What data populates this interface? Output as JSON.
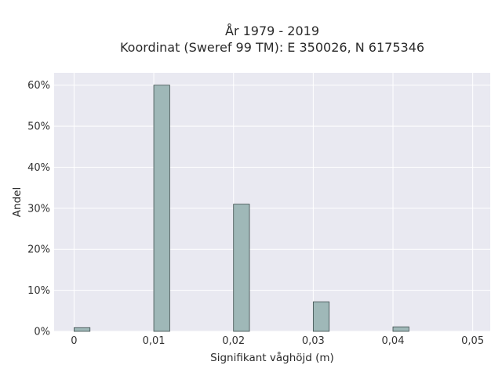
{
  "chart_data": {
    "type": "bar",
    "title_line1": "År 1979 - 2019",
    "title_line2": "Koordinat (Sweref 99 TM): E 350026, N 6175346",
    "xlabel": "Signifikant våghöjd (m)",
    "ylabel": "Andel",
    "x_ticks": [
      "0",
      "0,01",
      "0,02",
      "0,03",
      "0,04",
      "0,05"
    ],
    "x_tick_values": [
      0,
      0.01,
      0.02,
      0.03,
      0.04,
      0.05
    ],
    "y_ticks": [
      "0%",
      "10%",
      "20%",
      "30%",
      "40%",
      "50%",
      "60%"
    ],
    "y_tick_values": [
      0,
      0.1,
      0.2,
      0.3,
      0.4,
      0.5,
      0.6
    ],
    "xlim": [
      -0.0025,
      0.0522
    ],
    "ylim": [
      0,
      0.63
    ],
    "bin_width": 0.002,
    "x": [
      0,
      0.01,
      0.02,
      0.03,
      0.04
    ],
    "values": [
      0.009,
      0.6,
      0.31,
      0.072,
      0.011
    ],
    "colors": {
      "plot_bg": "#e9e9f1",
      "bar_fill": "#9fb8b8",
      "bar_edge": "#3b4b4b"
    }
  }
}
